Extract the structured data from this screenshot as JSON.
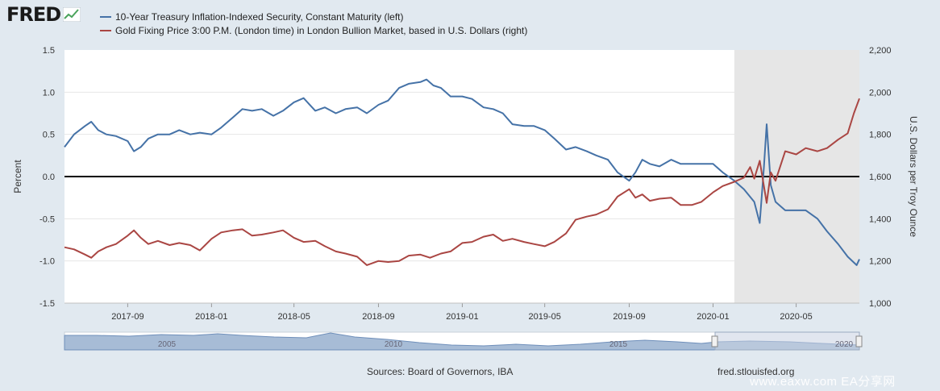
{
  "brand": {
    "logo_text": "FRED"
  },
  "legend": [
    {
      "label": "10-Year Treasury Inflation-Indexed Security, Constant Maturity (left)",
      "color": "#4572a7"
    },
    {
      "label": "Gold Fixing Price 3:00 P.M. (London time) in London Bullion Market, based in U.S. Dollars (right)",
      "color": "#aa4643"
    }
  ],
  "footer": {
    "source": "Sources: Board of Governors, IBA",
    "credit": "fred.stlouisfed.org",
    "watermark": "www.eaxw.com  EA分享网"
  },
  "chart_data": {
    "type": "line",
    "ylabel_left": "Percent",
    "ylabel_right": "U.S. Dollars per Troy Ounce",
    "ylim_left": [
      -1.5,
      1.5
    ],
    "ylim_right": [
      1000,
      2200
    ],
    "yticks_left": [
      "1.5",
      "1.0",
      "0.5",
      "0.0",
      "-0.5",
      "-1.0",
      "-1.5"
    ],
    "yticks_right": [
      "2,200",
      "2,000",
      "1,800",
      "1,600",
      "1,400",
      "1,200",
      "1,000"
    ],
    "xlim": [
      "2017-06-01",
      "2020-08-01"
    ],
    "xticks": [
      {
        "date": "2017-09-01",
        "label": "2017-09"
      },
      {
        "date": "2018-01-01",
        "label": "2018-01"
      },
      {
        "date": "2018-05-01",
        "label": "2018-05"
      },
      {
        "date": "2018-09-01",
        "label": "2018-09"
      },
      {
        "date": "2019-01-01",
        "label": "2019-01"
      },
      {
        "date": "2019-05-01",
        "label": "2019-05"
      },
      {
        "date": "2019-09-01",
        "label": "2019-09"
      },
      {
        "date": "2020-01-01",
        "label": "2020-01"
      },
      {
        "date": "2020-05-01",
        "label": "2020-05"
      }
    ],
    "recession_shading": {
      "start": "2020-02-01",
      "end": "2020-08-01",
      "color": "#e6e6e6"
    },
    "grid": true,
    "zero_line": true,
    "series": [
      {
        "name": "10-Year Treasury Inflation-Indexed Security, Constant Maturity (left)",
        "axis": "left",
        "color": "#4572a7",
        "points": [
          [
            "2017-06-01",
            0.35
          ],
          [
            "2017-06-15",
            0.5
          ],
          [
            "2017-07-01",
            0.6
          ],
          [
            "2017-07-10",
            0.65
          ],
          [
            "2017-07-20",
            0.55
          ],
          [
            "2017-08-01",
            0.5
          ],
          [
            "2017-08-15",
            0.48
          ],
          [
            "2017-09-01",
            0.42
          ],
          [
            "2017-09-10",
            0.3
          ],
          [
            "2017-09-20",
            0.35
          ],
          [
            "2017-10-01",
            0.45
          ],
          [
            "2017-10-15",
            0.5
          ],
          [
            "2017-11-01",
            0.5
          ],
          [
            "2017-11-15",
            0.55
          ],
          [
            "2017-12-01",
            0.5
          ],
          [
            "2017-12-15",
            0.52
          ],
          [
            "2018-01-01",
            0.5
          ],
          [
            "2018-01-15",
            0.58
          ],
          [
            "2018-02-01",
            0.7
          ],
          [
            "2018-02-15",
            0.8
          ],
          [
            "2018-03-01",
            0.78
          ],
          [
            "2018-03-15",
            0.8
          ],
          [
            "2018-04-01",
            0.72
          ],
          [
            "2018-04-15",
            0.78
          ],
          [
            "2018-05-01",
            0.88
          ],
          [
            "2018-05-15",
            0.93
          ],
          [
            "2018-06-01",
            0.78
          ],
          [
            "2018-06-15",
            0.82
          ],
          [
            "2018-07-01",
            0.75
          ],
          [
            "2018-07-15",
            0.8
          ],
          [
            "2018-08-01",
            0.82
          ],
          [
            "2018-08-15",
            0.75
          ],
          [
            "2018-09-01",
            0.85
          ],
          [
            "2018-09-15",
            0.9
          ],
          [
            "2018-10-01",
            1.05
          ],
          [
            "2018-10-15",
            1.1
          ],
          [
            "2018-11-01",
            1.12
          ],
          [
            "2018-11-10",
            1.15
          ],
          [
            "2018-11-20",
            1.08
          ],
          [
            "2018-12-01",
            1.05
          ],
          [
            "2018-12-15",
            0.95
          ],
          [
            "2019-01-01",
            0.95
          ],
          [
            "2019-01-15",
            0.92
          ],
          [
            "2019-02-01",
            0.82
          ],
          [
            "2019-02-15",
            0.8
          ],
          [
            "2019-03-01",
            0.75
          ],
          [
            "2019-03-15",
            0.62
          ],
          [
            "2019-04-01",
            0.6
          ],
          [
            "2019-04-15",
            0.6
          ],
          [
            "2019-05-01",
            0.55
          ],
          [
            "2019-05-15",
            0.45
          ],
          [
            "2019-06-01",
            0.32
          ],
          [
            "2019-06-15",
            0.35
          ],
          [
            "2019-07-01",
            0.3
          ],
          [
            "2019-07-15",
            0.25
          ],
          [
            "2019-08-01",
            0.2
          ],
          [
            "2019-08-15",
            0.05
          ],
          [
            "2019-09-01",
            -0.05
          ],
          [
            "2019-09-10",
            0.05
          ],
          [
            "2019-09-20",
            0.2
          ],
          [
            "2019-10-01",
            0.15
          ],
          [
            "2019-10-15",
            0.12
          ],
          [
            "2019-11-01",
            0.2
          ],
          [
            "2019-11-15",
            0.15
          ],
          [
            "2019-12-01",
            0.15
          ],
          [
            "2019-12-15",
            0.15
          ],
          [
            "2020-01-01",
            0.15
          ],
          [
            "2020-01-15",
            0.05
          ],
          [
            "2020-02-01",
            -0.05
          ],
          [
            "2020-02-15",
            -0.15
          ],
          [
            "2020-03-01",
            -0.3
          ],
          [
            "2020-03-09",
            -0.55
          ],
          [
            "2020-03-15",
            0.1
          ],
          [
            "2020-03-19",
            0.62
          ],
          [
            "2020-03-25",
            -0.1
          ],
          [
            "2020-04-01",
            -0.3
          ],
          [
            "2020-04-15",
            -0.4
          ],
          [
            "2020-05-01",
            -0.4
          ],
          [
            "2020-05-15",
            -0.4
          ],
          [
            "2020-06-01",
            -0.5
          ],
          [
            "2020-06-15",
            -0.65
          ],
          [
            "2020-07-01",
            -0.8
          ],
          [
            "2020-07-15",
            -0.95
          ],
          [
            "2020-07-28",
            -1.05
          ],
          [
            "2020-08-01",
            -0.98
          ]
        ]
      },
      {
        "name": "Gold Fixing Price 3:00 P.M. (London time) in London Bullion Market, based in U.S. Dollars (right)",
        "axis": "right",
        "color": "#aa4643",
        "points": [
          [
            "2017-06-01",
            1265
          ],
          [
            "2017-06-15",
            1255
          ],
          [
            "2017-07-01",
            1230
          ],
          [
            "2017-07-10",
            1215
          ],
          [
            "2017-07-20",
            1245
          ],
          [
            "2017-08-01",
            1265
          ],
          [
            "2017-08-15",
            1280
          ],
          [
            "2017-09-01",
            1320
          ],
          [
            "2017-09-10",
            1345
          ],
          [
            "2017-09-20",
            1310
          ],
          [
            "2017-10-01",
            1280
          ],
          [
            "2017-10-15",
            1295
          ],
          [
            "2017-11-01",
            1275
          ],
          [
            "2017-11-15",
            1285
          ],
          [
            "2017-12-01",
            1275
          ],
          [
            "2017-12-15",
            1250
          ],
          [
            "2018-01-01",
            1305
          ],
          [
            "2018-01-15",
            1335
          ],
          [
            "2018-02-01",
            1345
          ],
          [
            "2018-02-15",
            1350
          ],
          [
            "2018-03-01",
            1320
          ],
          [
            "2018-03-15",
            1325
          ],
          [
            "2018-04-01",
            1335
          ],
          [
            "2018-04-15",
            1345
          ],
          [
            "2018-05-01",
            1310
          ],
          [
            "2018-05-15",
            1290
          ],
          [
            "2018-06-01",
            1295
          ],
          [
            "2018-06-15",
            1270
          ],
          [
            "2018-07-01",
            1245
          ],
          [
            "2018-07-15",
            1235
          ],
          [
            "2018-08-01",
            1220
          ],
          [
            "2018-08-15",
            1180
          ],
          [
            "2018-09-01",
            1200
          ],
          [
            "2018-09-15",
            1195
          ],
          [
            "2018-10-01",
            1200
          ],
          [
            "2018-10-15",
            1225
          ],
          [
            "2018-11-01",
            1230
          ],
          [
            "2018-11-15",
            1215
          ],
          [
            "2018-12-01",
            1235
          ],
          [
            "2018-12-15",
            1245
          ],
          [
            "2019-01-01",
            1285
          ],
          [
            "2019-01-15",
            1290
          ],
          [
            "2019-02-01",
            1315
          ],
          [
            "2019-02-15",
            1325
          ],
          [
            "2019-03-01",
            1295
          ],
          [
            "2019-03-15",
            1305
          ],
          [
            "2019-04-01",
            1290
          ],
          [
            "2019-04-15",
            1280
          ],
          [
            "2019-05-01",
            1270
          ],
          [
            "2019-05-15",
            1290
          ],
          [
            "2019-06-01",
            1330
          ],
          [
            "2019-06-15",
            1395
          ],
          [
            "2019-07-01",
            1410
          ],
          [
            "2019-07-15",
            1420
          ],
          [
            "2019-08-01",
            1445
          ],
          [
            "2019-08-15",
            1505
          ],
          [
            "2019-09-01",
            1540
          ],
          [
            "2019-09-10",
            1500
          ],
          [
            "2019-09-20",
            1515
          ],
          [
            "2019-10-01",
            1485
          ],
          [
            "2019-10-15",
            1495
          ],
          [
            "2019-11-01",
            1500
          ],
          [
            "2019-11-15",
            1465
          ],
          [
            "2019-12-01",
            1465
          ],
          [
            "2019-12-15",
            1480
          ],
          [
            "2020-01-01",
            1525
          ],
          [
            "2020-01-15",
            1555
          ],
          [
            "2020-02-01",
            1575
          ],
          [
            "2020-02-15",
            1595
          ],
          [
            "2020-02-24",
            1645
          ],
          [
            "2020-03-01",
            1590
          ],
          [
            "2020-03-09",
            1675
          ],
          [
            "2020-03-19",
            1475
          ],
          [
            "2020-03-25",
            1620
          ],
          [
            "2020-04-01",
            1580
          ],
          [
            "2020-04-15",
            1720
          ],
          [
            "2020-05-01",
            1705
          ],
          [
            "2020-05-15",
            1735
          ],
          [
            "2020-06-01",
            1720
          ],
          [
            "2020-06-15",
            1735
          ],
          [
            "2020-07-01",
            1775
          ],
          [
            "2020-07-15",
            1805
          ],
          [
            "2020-07-24",
            1900
          ],
          [
            "2020-08-01",
            1970
          ]
        ]
      }
    ],
    "navigator": {
      "ticks": [
        "2005",
        "2010",
        "2015",
        "2020"
      ]
    }
  }
}
